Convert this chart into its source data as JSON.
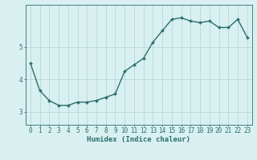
{
  "x": [
    0,
    1,
    2,
    3,
    4,
    5,
    6,
    7,
    8,
    9,
    10,
    11,
    12,
    13,
    14,
    15,
    16,
    17,
    18,
    19,
    20,
    21,
    22,
    23
  ],
  "y": [
    4.5,
    3.65,
    3.35,
    3.2,
    3.2,
    3.3,
    3.3,
    3.35,
    3.45,
    3.55,
    4.25,
    4.45,
    4.65,
    5.15,
    5.5,
    5.85,
    5.9,
    5.8,
    5.75,
    5.8,
    5.6,
    5.6,
    5.85,
    5.3
  ],
  "xlabel": "Humidex (Indice chaleur)",
  "ylim": [
    2.6,
    6.3
  ],
  "xlim": [
    -0.5,
    23.5
  ],
  "line_color": "#2d6e6e",
  "marker": "D",
  "marker_size": 2.0,
  "bg_color": "#d8f0f0",
  "grid_color": "#b8d8d8",
  "yticks": [
    3,
    4,
    5
  ],
  "xticks": [
    0,
    1,
    2,
    3,
    4,
    5,
    6,
    7,
    8,
    9,
    10,
    11,
    12,
    13,
    14,
    15,
    16,
    17,
    18,
    19,
    20,
    21,
    22,
    23
  ],
  "xlabel_fontsize": 6.5,
  "tick_fontsize": 5.5,
  "line_width": 1.0
}
